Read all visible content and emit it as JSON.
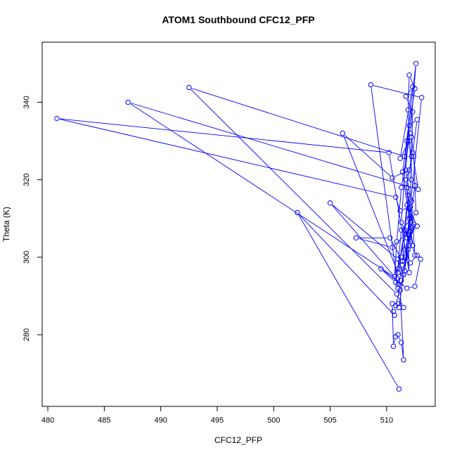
{
  "chart_data": {
    "type": "line",
    "title": "ATOM1 Southbound CFC12_PFP",
    "xlabel": "CFC12_PFP",
    "ylabel": "Theta (K)",
    "xlim": [
      479.5,
      514.3
    ],
    "ylim": [
      261.5,
      355.5
    ],
    "xticks": [
      480,
      485,
      490,
      495,
      500,
      505,
      510
    ],
    "yticks": [
      280,
      300,
      320,
      340
    ],
    "grid": false,
    "color": "#0000ff",
    "markers": "open-circle",
    "x": [
      510.5,
      510.6,
      510.8,
      511.0,
      511.3,
      511.5,
      511.2,
      511.0,
      510.7,
      510.9,
      511.3,
      512.1,
      512.6,
      511.6,
      492.5,
      510.9,
      511.5,
      511.0,
      510.8,
      511.6,
      512.0,
      511.4,
      512.5,
      512.0,
      511.9,
      512.2,
      512.5,
      511.9,
      512.0,
      510.2,
      480.8,
      510.8,
      511.2,
      512.1,
      512.3,
      511.8,
      512.2,
      512.0,
      511.2,
      512.3,
      511.7,
      512.3,
      512.1,
      511.7,
      512.0,
      512.7,
      512.3,
      512.8,
      487.1,
      510.9,
      511.3,
      512.2,
      512.6,
      512.4,
      512.2,
      511.8,
      511.3,
      512.1,
      512.0,
      512.7,
      511.8,
      513.1,
      508.6,
      511.0,
      511.4,
      511.9,
      512.2,
      512.5,
      512.3,
      511.7,
      512.0,
      510.5,
      506.1,
      511.0,
      511.3,
      511.8,
      512.1,
      512.4,
      512.0,
      511.6,
      511.0,
      510.7,
      505.0,
      511.0,
      511.5,
      512.0,
      512.2,
      511.7,
      511.4,
      510.3,
      507.3,
      510.5,
      511.7,
      512.3,
      512.1,
      511.6,
      512.1,
      512.7,
      513.0,
      512.5,
      511.8,
      509.5,
      510.8,
      511.3,
      511.7,
      511.9,
      511.5,
      511.1,
      510.6,
      510.7,
      502.1,
      511.1
    ],
    "y": [
      288.0,
      277.0,
      279.5,
      280.0,
      278.0,
      273.5,
      291.5,
      293.0,
      295.0,
      304.0,
      318.0,
      332.0,
      350.0,
      326.0,
      343.8,
      290.5,
      287.0,
      288.0,
      287.5,
      296.5,
      310.0,
      322.0,
      343.5,
      347.0,
      338.0,
      320.0,
      318.5,
      306.0,
      296.0,
      327.0,
      335.8,
      315.5,
      312.0,
      313.0,
      308.0,
      318.0,
      326.0,
      330.0,
      325.5,
      344.0,
      341.5,
      337.5,
      315.0,
      322.5,
      334.0,
      335.5,
      327.0,
      317.5,
      340.0,
      294.5,
      307.0,
      310.0,
      311.5,
      326.0,
      331.0,
      330.0,
      309.0,
      304.0,
      312.5,
      308.0,
      305.0,
      341.2,
      344.5,
      292.0,
      298.0,
      316.0,
      314.5,
      300.5,
      303.0,
      320.0,
      322.5,
      320.5,
      332.0,
      296.0,
      300.0,
      313.5,
      310.5,
      308.5,
      305.5,
      307.0,
      297.0,
      295.0,
      314.0,
      299.5,
      295.5,
      303.0,
      307.5,
      300.0,
      299.0,
      305.0,
      305.0,
      302.5,
      306.0,
      303.0,
      306.5,
      302.0,
      298.5,
      300.5,
      299.5,
      292.5,
      292.0,
      297.0,
      293.5,
      294.0,
      300.5,
      302.0,
      295.5,
      287.0,
      286.0,
      285.0,
      311.5,
      266.0
    ]
  }
}
